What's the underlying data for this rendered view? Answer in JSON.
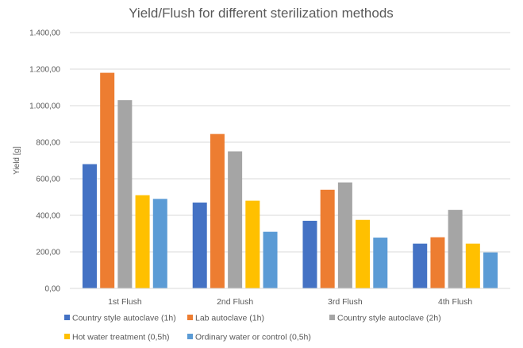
{
  "chart_data": {
    "type": "bar",
    "title": "Yield/Flush for different sterilization methods",
    "xlabel": "",
    "ylabel": "Yield [g]",
    "ylim": [
      0,
      1400
    ],
    "yticks": [
      "0,00",
      "200,00",
      "400,00",
      "600,00",
      "800,00",
      "1.000,00",
      "1.200,00",
      "1.400,00"
    ],
    "grid": true,
    "legend": "bottom",
    "categories": [
      "1st Flush",
      "2nd Flush",
      "3rd Flush",
      "4th Flush"
    ],
    "series": [
      {
        "name": "Country style autoclave (1h)",
        "color": "#4472C4",
        "values": [
          680,
          470,
          370,
          245
        ]
      },
      {
        "name": "Lab autoclave (1h)",
        "color": "#ED7D31",
        "values": [
          1180,
          845,
          540,
          280
        ]
      },
      {
        "name": "Country style autoclave (2h)",
        "color": "#A5A5A5",
        "values": [
          1030,
          750,
          580,
          430
        ]
      },
      {
        "name": "Hot water treatment (0,5h)",
        "color": "#FFC000",
        "values": [
          510,
          480,
          375,
          245
        ]
      },
      {
        "name": "Ordinary water or control (0,5h)",
        "color": "#5B9BD5",
        "values": [
          490,
          310,
          278,
          197
        ]
      }
    ]
  }
}
